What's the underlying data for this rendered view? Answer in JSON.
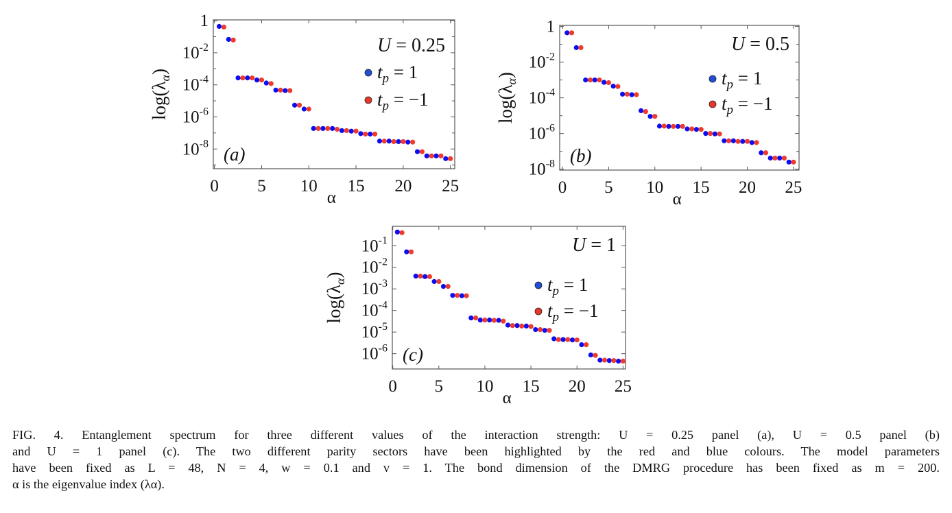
{
  "chart_data": [
    {
      "type": "scatter",
      "panel_label": "(a)",
      "annotation": {
        "var": "U",
        "value": " = 0.25"
      },
      "ylabel": {
        "pre": "log(λ",
        "sub": "α",
        "post": ")"
      },
      "xlabel": "α",
      "y_scale": "log",
      "xlim": [
        -0.12,
        25.46
      ],
      "ylim": [
        5.9e-10,
        1.12
      ],
      "grid": false,
      "legend_placement": "right",
      "x_ticks": [
        {
          "value": 0,
          "label": "0"
        },
        {
          "value": 5,
          "label": "5"
        },
        {
          "value": 10,
          "label": "10"
        },
        {
          "value": 15,
          "label": "15"
        },
        {
          "value": 20,
          "label": "20"
        },
        {
          "value": 25,
          "label": "25"
        }
      ],
      "y_ticks": [
        {
          "value": 1,
          "base": "1",
          "exp": ""
        },
        {
          "value": 0.01,
          "base": "10",
          "exp": "-2"
        },
        {
          "value": 0.0001,
          "base": "10",
          "exp": "-4"
        },
        {
          "value": 1e-06,
          "base": "10",
          "exp": "-6"
        },
        {
          "value": 1e-08,
          "base": "10",
          "exp": "-8"
        }
      ],
      "y_minor_ticks": [
        0.1,
        0.001,
        1e-05,
        1e-07,
        1e-09
      ],
      "series": [
        {
          "legend": {
            "var": "t",
            "sub": "p",
            "value": " = 1"
          },
          "color": "#0d0df2",
          "x": [
            0.5,
            1.5,
            2.5,
            3.5,
            4.5,
            5.5,
            6.5,
            7.5,
            8.5,
            9.5,
            10.5,
            11.5,
            12.5,
            13.5,
            14.5,
            15.5,
            16.5,
            17.5,
            18.5,
            19.5,
            20.5,
            21.5,
            22.5,
            23.5,
            24.5
          ],
          "y": [
            0.44,
            0.068,
            0.00027,
            0.00027,
            0.0002,
            0.00013,
            4.7e-05,
            4.4e-05,
            5.4e-06,
            3.1e-06,
            1.9e-07,
            1.9e-07,
            1.9e-07,
            1.4e-07,
            1.3e-07,
            9.1e-08,
            8.5e-08,
            3.1e-08,
            3.1e-08,
            2.9e-08,
            2.7e-08,
            6.8e-09,
            3.7e-09,
            3.7e-09,
            2.5e-09
          ]
        },
        {
          "legend": {
            "var": "t",
            "sub": "p",
            "value": " = −1"
          },
          "color": "#ee3b2b",
          "x": [
            1,
            2,
            3,
            4,
            5,
            6,
            7,
            8,
            9,
            10,
            11,
            12,
            13,
            14,
            15,
            16,
            17,
            18,
            19,
            20,
            21,
            22,
            23,
            24,
            25
          ],
          "y": [
            0.4,
            0.062,
            0.00027,
            0.00027,
            0.0002,
            0.00012,
            4.7e-05,
            4.4e-05,
            5.4e-06,
            3.1e-06,
            1.9e-07,
            1.9e-07,
            1.7e-07,
            1.4e-07,
            1.3e-07,
            8.5e-08,
            8.5e-08,
            3.1e-08,
            2.9e-08,
            2.9e-08,
            2.7e-08,
            6.8e-09,
            3.7e-09,
            3.7e-09,
            2.5e-09
          ]
        }
      ]
    },
    {
      "type": "scatter",
      "panel_label": "(b)",
      "annotation": {
        "var": "U",
        "value": " = 0.5"
      },
      "ylabel": {
        "pre": "log(λ",
        "sub": "α",
        "post": ")"
      },
      "xlabel": "α",
      "y_scale": "log",
      "xlim": [
        -0.3,
        25.6
      ],
      "ylim": [
        8.9e-09,
        1.15
      ],
      "grid": false,
      "legend_placement": "right",
      "x_ticks": [
        {
          "value": 0,
          "label": "0"
        },
        {
          "value": 5,
          "label": "5"
        },
        {
          "value": 10,
          "label": "10"
        },
        {
          "value": 15,
          "label": "15"
        },
        {
          "value": 20,
          "label": "20"
        },
        {
          "value": 25,
          "label": "25"
        }
      ],
      "y_ticks": [
        {
          "value": 1,
          "base": "1",
          "exp": ""
        },
        {
          "value": 0.01,
          "base": "10",
          "exp": "-2"
        },
        {
          "value": 0.0001,
          "base": "10",
          "exp": "-4"
        },
        {
          "value": 1e-06,
          "base": "10",
          "exp": "-6"
        },
        {
          "value": 1e-08,
          "base": "10",
          "exp": "-8"
        }
      ],
      "y_minor_ticks": [
        0.1,
        0.001,
        1e-05,
        1e-07
      ],
      "series": [
        {
          "legend": {
            "var": "t",
            "sub": "p",
            "value": " = 1"
          },
          "color": "#0d0df2",
          "x": [
            0.5,
            1.5,
            2.5,
            3.5,
            4.5,
            5.5,
            6.5,
            7.5,
            8.5,
            9.5,
            10.5,
            11.5,
            12.5,
            13.5,
            14.5,
            15.5,
            16.5,
            17.5,
            18.5,
            19.5,
            20.5,
            21.5,
            22.5,
            23.5,
            24.5
          ],
          "y": [
            0.44,
            0.065,
            0.001,
            0.001,
            0.00074,
            0.00045,
            0.00016,
            0.00015,
            1.9e-05,
            9.1e-06,
            2.6e-06,
            2.5e-06,
            2.5e-06,
            1.8e-06,
            1.7e-06,
            1e-06,
            9.5e-07,
            3.9e-07,
            3.9e-07,
            3.6e-07,
            3.1e-07,
            8.3e-08,
            4.2e-08,
            4.2e-08,
            2.5e-08
          ]
        },
        {
          "legend": {
            "var": "t",
            "sub": "p",
            "value": " = −1"
          },
          "color": "#ee3b2b",
          "x": [
            1,
            2,
            3,
            4,
            5,
            6,
            7,
            8,
            9,
            10,
            11,
            12,
            13,
            14,
            15,
            16,
            17,
            18,
            19,
            20,
            21,
            22,
            23,
            24,
            25
          ],
          "y": [
            0.44,
            0.065,
            0.001,
            0.001,
            0.00071,
            0.00043,
            0.00016,
            0.00015,
            1.7e-05,
            9.1e-06,
            2.6e-06,
            2.5e-06,
            2.5e-06,
            1.8e-06,
            1.7e-06,
            1e-06,
            9.5e-07,
            3.9e-07,
            3.6e-07,
            3.6e-07,
            3.1e-07,
            8.3e-08,
            4.2e-08,
            4.2e-08,
            2.5e-08
          ]
        }
      ]
    },
    {
      "type": "scatter",
      "panel_label": "(c)",
      "annotation": {
        "var": "U",
        "value": " = 1"
      },
      "ylabel": {
        "pre": "log(λ",
        "sub": "α",
        "post": ")"
      },
      "xlabel": "α",
      "y_scale": "log",
      "xlim": [
        -0.05,
        25.27
      ],
      "ylim": [
        1.95e-07,
        0.79
      ],
      "grid": false,
      "legend_placement": "right",
      "x_ticks": [
        {
          "value": 0,
          "label": "0"
        },
        {
          "value": 5,
          "label": "5"
        },
        {
          "value": 10,
          "label": "10"
        },
        {
          "value": 15,
          "label": "15"
        },
        {
          "value": 20,
          "label": "20"
        },
        {
          "value": 25,
          "label": "25"
        }
      ],
      "y_ticks": [
        {
          "value": 0.1,
          "base": "10",
          "exp": "-1"
        },
        {
          "value": 0.01,
          "base": "10",
          "exp": "-2"
        },
        {
          "value": 0.001,
          "base": "10",
          "exp": "-3"
        },
        {
          "value": 0.0001,
          "base": "10",
          "exp": "-4"
        },
        {
          "value": 1e-05,
          "base": "10",
          "exp": "-5"
        },
        {
          "value": 1e-06,
          "base": "10",
          "exp": "-6"
        }
      ],
      "y_minor_ticks": [],
      "series": [
        {
          "legend": {
            "var": "t",
            "sub": "p",
            "value": " = 1"
          },
          "color": "#0d0df2",
          "x": [
            0.5,
            1.5,
            2.5,
            3.5,
            4.5,
            5.5,
            6.5,
            7.5,
            8.5,
            9.5,
            10.5,
            11.5,
            12.5,
            13.5,
            14.5,
            15.5,
            16.5,
            17.5,
            18.5,
            19.5,
            20.5,
            21.5,
            22.5,
            23.5,
            24.5
          ],
          "y": [
            0.43,
            0.052,
            0.0039,
            0.0037,
            0.0022,
            0.0013,
            0.0005,
            0.00048,
            4.5e-05,
            3.6e-05,
            3.6e-05,
            3.5e-05,
            2.1e-05,
            2e-05,
            1.9e-05,
            1.3e-05,
            1.2e-05,
            4.9e-06,
            4.5e-06,
            4.3e-06,
            2.6e-06,
            8.7e-07,
            5e-07,
            4.8e-07,
            4.5e-07
          ]
        },
        {
          "legend": {
            "var": "t",
            "sub": "p",
            "value": " = −1"
          },
          "color": "#ee3b2b",
          "x": [
            1,
            2,
            3,
            4,
            5,
            6,
            7,
            8,
            9,
            10,
            11,
            12,
            13,
            14,
            15,
            16,
            17,
            18,
            19,
            20,
            21,
            22,
            23,
            24,
            25
          ],
          "y": [
            0.4,
            0.052,
            0.0039,
            0.0037,
            0.0022,
            0.0013,
            0.0005,
            0.00048,
            4.5e-05,
            3.6e-05,
            3.5e-05,
            3.2e-05,
            2e-05,
            1.9e-05,
            1.8e-05,
            1.3e-05,
            1.2e-05,
            4.5e-06,
            4.5e-06,
            4.3e-06,
            2.6e-06,
            8.3e-07,
            5e-07,
            4.8e-07,
            4.5e-07
          ]
        }
      ]
    }
  ],
  "colors": {
    "legend_blue": "#1f4fd6",
    "legend_red": "#e8372a",
    "frame": "#555555"
  },
  "caption": {
    "lines": [
      "FIG. 4. Entanglement spectrum for three different values of the interaction strength: U = 0.25 panel (a), U = 0.5 panel (b)",
      "and U = 1 panel (c). The two different parity sectors have been highlighted by the red and blue colours. The model parameters",
      "have been fixed as L = 48, N = 4, w = 0.1 and v = 1. The bond dimension of the DMRG procedure has been fixed as m = 200.",
      "α is the eigenvalue index (λα)."
    ]
  }
}
